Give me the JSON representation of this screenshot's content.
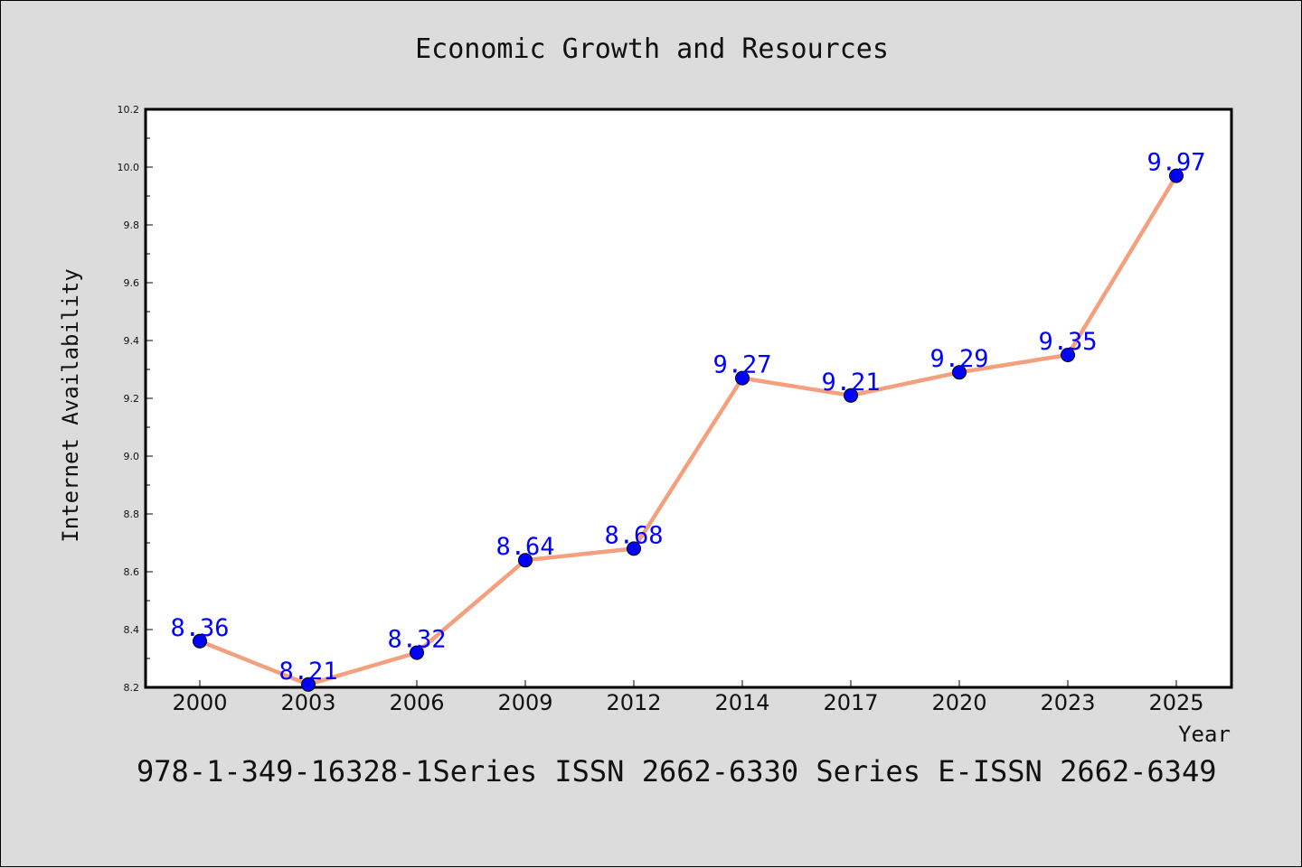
{
  "chart_data": {
    "type": "line",
    "title": "Economic Growth and Resources",
    "xlabel": "Year",
    "ylabel": "Internet Availability",
    "categories": [
      "2000",
      "2003",
      "2006",
      "2009",
      "2012",
      "2014",
      "2017",
      "2020",
      "2023",
      "2025"
    ],
    "series": [
      {
        "values": [
          8.36,
          8.21,
          8.32,
          8.64,
          8.68,
          9.27,
          9.21,
          9.29,
          9.35,
          9.97
        ],
        "data_labels": [
          "8.36",
          "8.21",
          "8.32",
          "8.64",
          "8.68",
          "9.27",
          "9.21",
          "9.29",
          "9.35",
          "9.97"
        ]
      }
    ],
    "ylim": [
      8.2,
      10.2
    ],
    "yticks": [
      "8.2",
      "8.4",
      "8.6",
      "8.8",
      "9.0",
      "9.2",
      "9.4",
      "9.6",
      "9.8",
      "10.0",
      "10.2"
    ],
    "grid": false,
    "line_color": "#f4a07e",
    "marker_color": "#0000ff",
    "label_color": "#0000ff",
    "background": "#dcdcdc",
    "plot_background": "#ffffff"
  },
  "footer": {
    "text": "978-1-349-16328-1Series ISSN 2662-6330 Series E-ISSN 2662-6349"
  }
}
